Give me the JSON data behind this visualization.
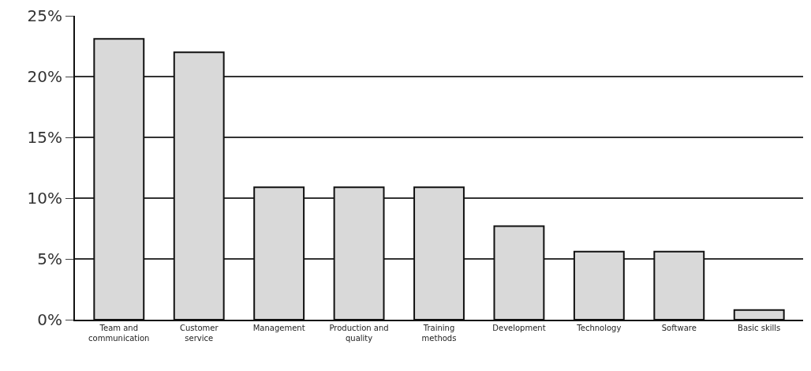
{
  "chart_data": {
    "type": "bar",
    "categories": [
      "Team and communication",
      "Customer service",
      "Management",
      "Production and quality",
      "Training methods",
      "Development",
      "Technology",
      "Software",
      "Basic skills"
    ],
    "values": [
      23.1,
      22,
      10.9,
      10.9,
      10.9,
      7.7,
      5.6,
      5.6,
      0.8
    ],
    "color": "#d9d9d9",
    "ylim": [
      0,
      25
    ],
    "yticks": [
      {
        "value": 0,
        "label": "0%"
      },
      {
        "value": 5,
        "label": "5%"
      },
      {
        "value": 10,
        "label": "10%"
      },
      {
        "value": 15,
        "label": "15%"
      },
      {
        "value": 20,
        "label": "20%"
      },
      {
        "value": 25,
        "label": "25%"
      }
    ],
    "grid": "y"
  }
}
